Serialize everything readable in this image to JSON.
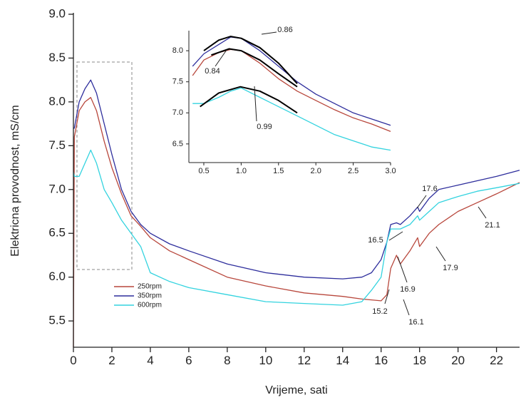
{
  "chart_data": [
    {
      "type": "line",
      "xlabel": "Vrijeme, sati",
      "ylabel": "Elektricna provodnost, mS/cm",
      "x": [
        0,
        0.05,
        0.3,
        0.6,
        0.9,
        1.2,
        1.6,
        2,
        2.5,
        3,
        3.5,
        4,
        5,
        6,
        8,
        10,
        12,
        14,
        15,
        15.5,
        16,
        16.3,
        16.5,
        16.8,
        17,
        17.5,
        17.9,
        18,
        18.5,
        19,
        20,
        21,
        22,
        23.2
      ],
      "series": [
        {
          "name": "250rpm",
          "color": "#b8473c",
          "values": [
            5.2,
            7.6,
            7.9,
            8.0,
            8.05,
            7.9,
            7.55,
            7.25,
            6.95,
            6.7,
            6.58,
            6.45,
            6.3,
            6.2,
            6.0,
            5.9,
            5.82,
            5.78,
            5.75,
            5.74,
            5.73,
            5.8,
            6.1,
            6.25,
            6.15,
            6.3,
            6.45,
            6.35,
            6.5,
            6.6,
            6.75,
            6.85,
            6.95,
            7.08
          ]
        },
        {
          "name": "350rpm",
          "color": "#2d2d9c",
          "values": [
            7.7,
            7.7,
            8.0,
            8.15,
            8.25,
            8.1,
            7.75,
            7.4,
            7.0,
            6.75,
            6.6,
            6.5,
            6.38,
            6.3,
            6.15,
            6.05,
            6.0,
            5.98,
            6.0,
            6.05,
            6.2,
            6.4,
            6.6,
            6.62,
            6.6,
            6.7,
            6.8,
            6.75,
            6.9,
            7.0,
            7.05,
            7.1,
            7.15,
            7.22
          ]
        },
        {
          "name": "600rpm",
          "color": "#33d3df",
          "values": [
            7.2,
            7.15,
            7.15,
            7.3,
            7.45,
            7.3,
            7.0,
            6.85,
            6.65,
            6.5,
            6.35,
            6.05,
            5.95,
            5.88,
            5.8,
            5.72,
            5.7,
            5.68,
            5.72,
            5.85,
            6.0,
            6.4,
            6.55,
            6.55,
            6.55,
            6.6,
            6.7,
            6.65,
            6.75,
            6.85,
            6.92,
            6.98,
            7.02,
            7.07
          ]
        }
      ],
      "xlim": [
        0,
        23.2
      ],
      "ylim": [
        5.2,
        9.0
      ],
      "xticks": [
        0,
        2,
        4,
        6,
        8,
        10,
        12,
        14,
        16,
        18,
        20,
        22
      ],
      "yticks": [
        5.5,
        {
          "value": 6,
          "label": "6.0"
        },
        6.5,
        {
          "value": 7,
          "label": "7.0"
        },
        7.5,
        {
          "value": 8,
          "label": "8.0"
        },
        8.5,
        {
          "value": 9,
          "label": "9.0"
        }
      ],
      "legend": "lower-left",
      "annotations": [
        "15.2",
        "16.1",
        "16.5",
        "16.9",
        "17.6",
        "17.9",
        "21.1"
      ]
    },
    {
      "type": "line",
      "x": [
        0.35,
        0.5,
        0.7,
        0.86,
        1.0,
        1.25,
        1.5,
        1.75,
        2.0,
        2.25,
        2.5,
        2.75,
        3.0
      ],
      "series": [
        {
          "color": "#2d2d9c",
          "values": [
            7.75,
            7.95,
            8.1,
            8.22,
            8.2,
            8.0,
            7.75,
            7.5,
            7.3,
            7.15,
            7.0,
            6.9,
            6.8
          ]
        },
        {
          "color": "#b8473c",
          "values": [
            7.6,
            7.85,
            7.97,
            8.02,
            8.0,
            7.8,
            7.55,
            7.35,
            7.2,
            7.05,
            6.92,
            6.82,
            6.7
          ]
        },
        {
          "color": "#33d3df",
          "values": [
            7.15,
            7.15,
            7.25,
            7.35,
            7.4,
            7.25,
            7.1,
            6.95,
            6.8,
            6.65,
            6.55,
            6.45,
            6.4
          ]
        }
      ],
      "fits": [
        {
          "color": "#000000",
          "x": [
            0.5,
            0.7,
            0.86,
            1.0,
            1.25,
            1.5,
            1.75
          ],
          "values": [
            8.0,
            8.17,
            8.23,
            8.2,
            8.05,
            7.8,
            7.47
          ]
        },
        {
          "color": "#000000",
          "x": [
            0.6,
            0.84,
            1.0,
            1.25,
            1.5,
            1.75
          ],
          "values": [
            7.93,
            8.03,
            8.0,
            7.85,
            7.63,
            7.42
          ]
        },
        {
          "color": "#000000",
          "x": [
            0.45,
            0.7,
            0.99,
            1.25,
            1.5,
            1.75
          ],
          "values": [
            7.1,
            7.32,
            7.42,
            7.35,
            7.2,
            7.0
          ]
        }
      ],
      "xlim": [
        0.3,
        3.0
      ],
      "ylim": [
        6.2,
        8.3
      ],
      "xticks": [
        0.5,
        {
          "value": 1,
          "label": "1.0"
        },
        1.5,
        {
          "value": 2,
          "label": "2.0"
        },
        2.5,
        {
          "value": 3,
          "label": "3.0"
        }
      ],
      "yticks": [
        6.5,
        {
          "value": 7,
          "label": "7.0"
        },
        7.5,
        {
          "value": 8,
          "label": "8.0"
        }
      ],
      "annotations": [
        "0.86",
        "0.84",
        "0.99"
      ]
    }
  ]
}
